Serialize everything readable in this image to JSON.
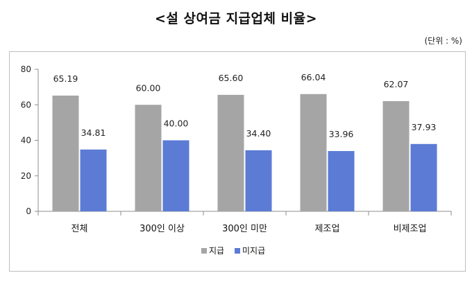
{
  "page": {
    "title": "<설 상여금 지급업체 비율>",
    "unit": "(단위 : %)"
  },
  "chart_data": {
    "type": "bar",
    "title": "<설 상여금 지급업체 비율>",
    "unit": "(단위 : %)",
    "categories": [
      "전체",
      "300인 이상",
      "300인 미만",
      "제조업",
      "비제조업"
    ],
    "series": [
      {
        "name": "지급",
        "values": [
          65.19,
          60.0,
          65.6,
          66.04,
          62.07
        ],
        "color": "#a5a5a5"
      },
      {
        "name": "미지급",
        "values": [
          34.81,
          40.0,
          34.4,
          33.96,
          37.93
        ],
        "color": "#5b7bd5"
      }
    ],
    "data_labels": [
      [
        "65.19",
        "60.00",
        "65.60",
        "66.04",
        "62.07"
      ],
      [
        "34.81",
        "40.00",
        "34.40",
        "33.96",
        "37.93"
      ]
    ],
    "ylim": [
      0,
      80
    ],
    "yticks": [
      0,
      20,
      40,
      60,
      80
    ],
    "grid": false,
    "legend_position": "bottom"
  }
}
